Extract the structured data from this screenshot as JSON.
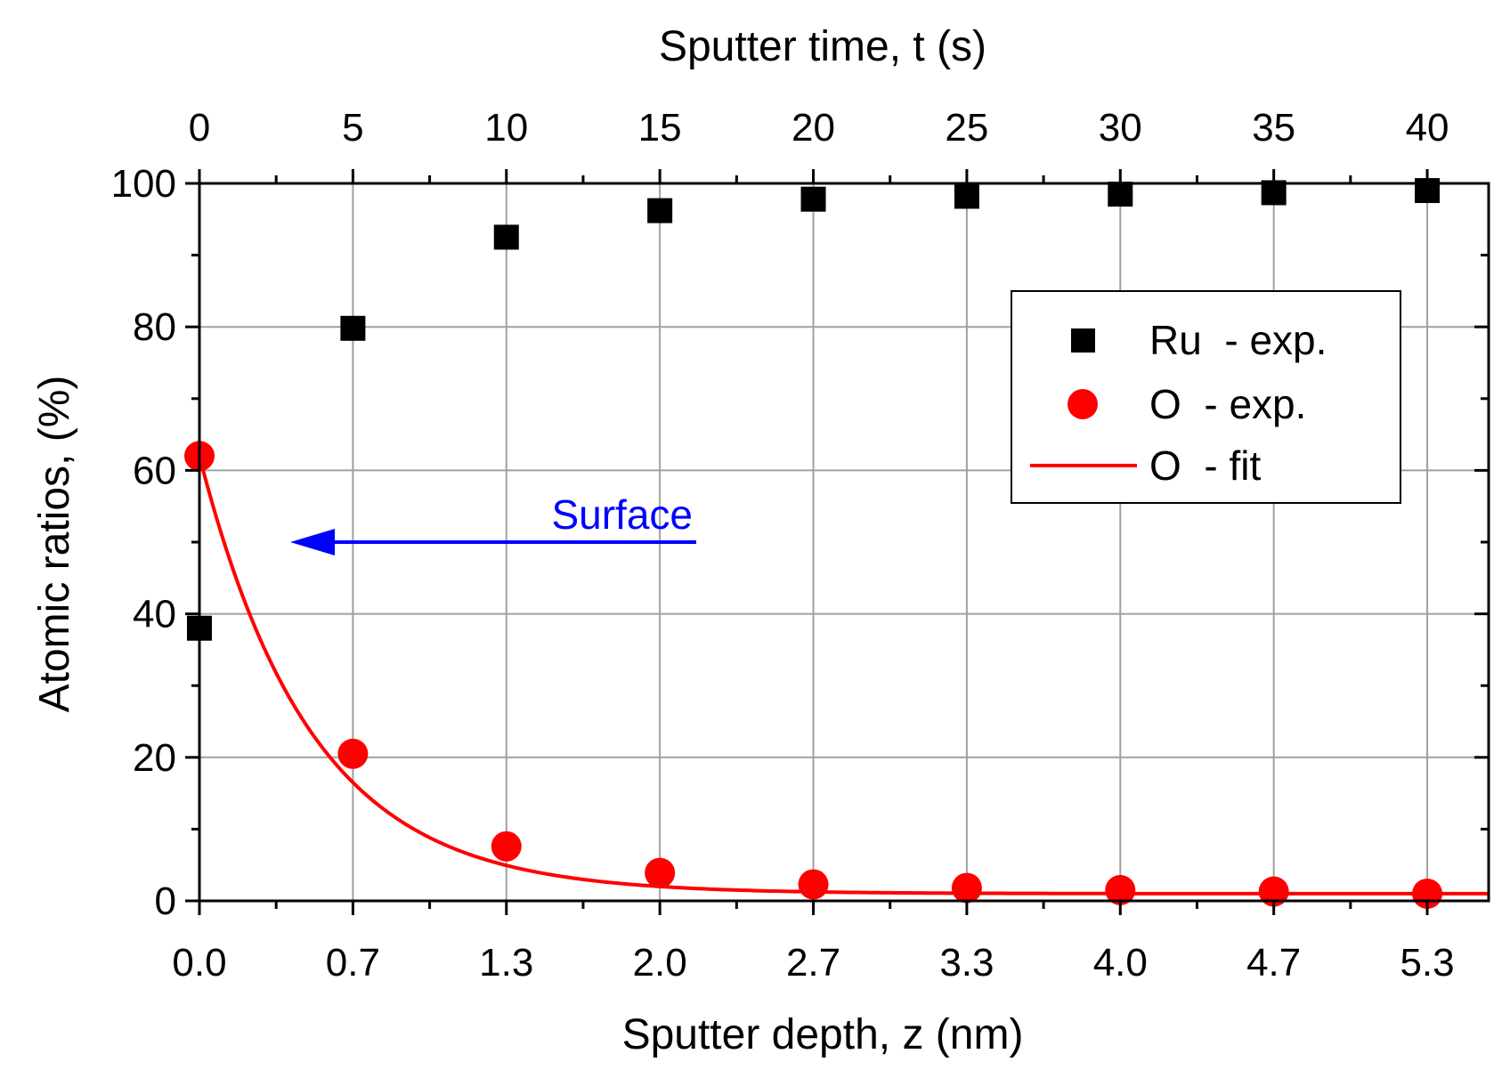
{
  "chart_data": {
    "type": "scatter",
    "x": [
      0,
      5,
      10,
      15,
      20,
      25,
      30,
      35,
      40
    ],
    "xlim": [
      0,
      42
    ],
    "ylim": [
      0,
      100
    ],
    "grid": true,
    "x_bottom": {
      "label": "Sputter depth, z (nm)",
      "tick_positions": [
        0,
        5,
        10,
        15,
        20,
        25,
        30,
        35,
        40
      ],
      "tick_labels": [
        "0.0",
        "0.7",
        "1.3",
        "2.0",
        "2.7",
        "3.3",
        "4.0",
        "4.7",
        "5.3"
      ]
    },
    "x_top": {
      "label": "Sputter time, t (s)",
      "tick_positions": [
        0,
        5,
        10,
        15,
        20,
        25,
        30,
        35,
        40
      ],
      "tick_labels": [
        "0",
        "5",
        "10",
        "15",
        "20",
        "25",
        "30",
        "35",
        "40"
      ]
    },
    "y": {
      "label": "Atomic ratios, (%)",
      "tick_positions": [
        0,
        20,
        40,
        60,
        80,
        100
      ],
      "tick_labels": [
        "0",
        "20",
        "40",
        "60",
        "80",
        "100"
      ]
    },
    "series": [
      {
        "name": "Ru  - exp.",
        "marker": "square",
        "color": "#000000",
        "values": [
          38,
          79.8,
          92.5,
          96.2,
          97.8,
          98.2,
          98.5,
          98.7,
          99.0
        ]
      },
      {
        "name": "O  - exp.",
        "marker": "circle",
        "color": "#ff0000",
        "values": [
          62,
          20.5,
          7.6,
          3.9,
          2.3,
          1.8,
          1.5,
          1.3,
          1.0
        ]
      },
      {
        "name": "O  - fit",
        "style": "line",
        "color": "#ff0000",
        "model": "exponential decay",
        "fit_params": {
          "y0": 1.0,
          "A": 61.0,
          "tau_s": 3.65
        },
        "x_range": [
          0,
          42
        ]
      }
    ],
    "annotations": [
      {
        "text": "Surface",
        "color": "#0000ff",
        "arrow": "left",
        "arrow_y": 50
      }
    ],
    "legend": {
      "position": "top-right"
    }
  }
}
